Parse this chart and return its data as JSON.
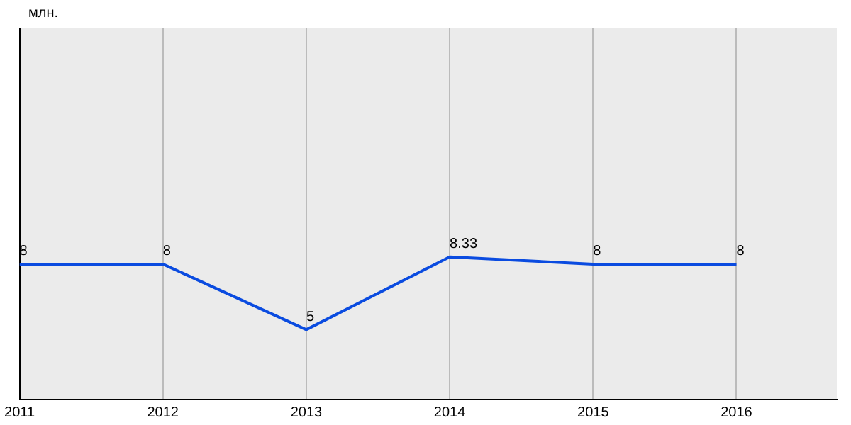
{
  "chart_data": {
    "type": "line",
    "ylabel": "млн.",
    "x": [
      2011,
      2012,
      2013,
      2014,
      2015,
      2016
    ],
    "series": [
      {
        "color": "#0a4be0",
        "values": [
          8,
          8,
          5,
          8.33,
          8,
          8
        ]
      }
    ],
    "xlim": [
      2011,
      2016.7
    ],
    "xticks": [
      2011,
      2012,
      2013,
      2014,
      2015,
      2016
    ],
    "ylim": [
      1.8,
      18.8
    ],
    "tick_labels": "x",
    "grid": "x",
    "legend": false,
    "marker": "none",
    "line_style": "solid",
    "data_labels": true
  }
}
